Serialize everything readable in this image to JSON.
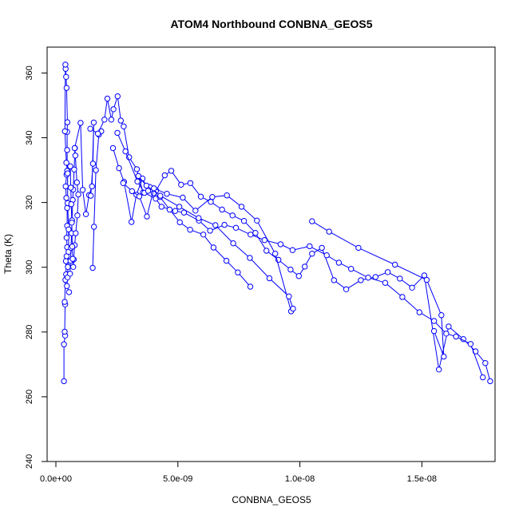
{
  "chart_data": {
    "type": "line",
    "title": "ATOM4 Northbound CONBNA_GEOS5",
    "xlabel": "CONBNA_GEOS5",
    "ylabel": "Theta (K)",
    "xlim": [
      -3.6e-10,
      1.8e-08
    ],
    "ylim": [
      240,
      368
    ],
    "x_ticks": [
      {
        "value": 0,
        "label": "0.0e+00"
      },
      {
        "value": 5e-09,
        "label": "5.0e-09"
      },
      {
        "value": 1e-08,
        "label": "1.0e-08"
      },
      {
        "value": 1.5e-08,
        "label": "1.5e-08"
      }
    ],
    "y_ticks": [
      {
        "value": 240,
        "label": "240"
      },
      {
        "value": 260,
        "label": "260"
      },
      {
        "value": 280,
        "label": "280"
      },
      {
        "value": 300,
        "label": "300"
      },
      {
        "value": 320,
        "label": "320"
      },
      {
        "value": 340,
        "label": "340"
      },
      {
        "value": 360,
        "label": "360"
      }
    ],
    "grid": false,
    "legend": "none",
    "color": "#0000ff",
    "series": [
      {
        "x": [
          3.3e-10,
          3.3e-10,
          3.8e-10,
          3.6e-10,
          3.8e-10,
          3.6e-10,
          3.9e-10,
          4.2e-10,
          4.1e-10,
          4.4e-10,
          4.6e-10,
          4.4e-10,
          4.6e-10,
          4.6e-10,
          4.3e-10,
          4e-10,
          4.4e-10,
          4.6e-10,
          4.6e-10,
          4.6e-10,
          4.7e-10,
          4.4e-10,
          4.2e-10,
          4e-10,
          3.9e-10,
          3.7e-10,
          4.3e-10,
          4.8e-10,
          4.8e-10,
          5.2e-10,
          5.2e-10,
          4.9e-10,
          4.8e-10,
          4.5e-10,
          5.4e-10
        ],
        "y": [
          264.8,
          276.2,
          278.9,
          280.1,
          288.5,
          289.3,
          296.1,
          297.8,
          301.9,
          303.4,
          306.2,
          309.1,
          312.8,
          318.3,
          321.4,
          325.0,
          328.6,
          329.8,
          336.2,
          341.8,
          344.8,
          355.4,
          358.8,
          361.3,
          362.6,
          342.0,
          332.3,
          329.0,
          319.8,
          311.7,
          304.8,
          300.1,
          296.9,
          294.2,
          292.3
        ]
      },
      {
        "x": [
          5.8e-10,
          6e-10,
          6.2e-10,
          6.4e-10,
          6.6e-10,
          6.9e-10,
          7.1e-10,
          7.5e-10,
          7.8e-10,
          8e-10,
          8.6e-10,
          9.2e-10,
          8.8e-10,
          8.1e-10,
          7.7e-10,
          7.3e-10,
          7.1e-10,
          6.9e-10,
          6.7e-10,
          6.5e-10,
          6.3e-10,
          6.1e-10,
          5.9e-10
        ],
        "y": [
          298.0,
          302.0,
          306.0,
          310.5,
          314.5,
          320.8,
          324.0,
          330.2,
          336.8,
          334.5,
          326.2,
          322.5,
          316.0,
          310.5,
          306.8,
          302.4,
          300.1,
          302.6,
          306.4,
          313.8,
          319.5,
          324.6,
          331.2
        ]
      },
      {
        "x": [
          7.7e-10,
          1.01e-09,
          1.1e-09,
          1.23e-09,
          1.36e-09,
          1.48e-09,
          1.55e-09,
          1.52e-09,
          1.43e-09
        ],
        "y": [
          336.8,
          344.6,
          323.9,
          316.4,
          322.3,
          325.0,
          344.7,
          332.0,
          322.1
        ]
      },
      {
        "x": [
          1.51e-09,
          1.56e-09,
          1.64e-09,
          1.76e-09,
          1.86e-09
        ],
        "y": [
          299.8,
          312.5,
          330.0,
          341.0,
          342.0
        ]
      },
      {
        "x": [
          1.41e-09,
          1.72e-09,
          1.99e-09,
          2.11e-09,
          2.27e-09,
          2.36e-09,
          2.53e-09,
          2.66e-09,
          2.78e-09,
          3e-09,
          3.32e-09,
          3.57e-09,
          3.85e-09,
          4.11e-09,
          4.46e-09,
          4.73e-09,
          5.13e-09,
          5.51e-09,
          5.94e-09,
          6.35e-09,
          6.81e-09,
          7.24e-09,
          7.71e-09,
          8.18e-09,
          8.63e-09,
          9.12e-09,
          9.62e-09,
          9.96e-09,
          1.02e-08,
          1.05e-08,
          1.09e-08,
          1.14e-08,
          1.19e-08,
          1.25e-08,
          1.31e-08,
          1.36e-08,
          1.41e-08,
          1.46e-08,
          1.51e-08,
          1.57e-08,
          1.61e-08,
          1.67e-08,
          1.72e-08,
          1.76e-08,
          1.78e-08
        ],
        "y": [
          342.8,
          341.3,
          345.6,
          352.1,
          345.6,
          348.8,
          352.8,
          345.3,
          343.5,
          334.0,
          330.3,
          323.1,
          324.8,
          323.7,
          328.4,
          329.8,
          325.5,
          326.0,
          321.8,
          320.2,
          317.8,
          316.0,
          314.3,
          310.6,
          305.1,
          302.3,
          299.3,
          297.3,
          300.2,
          304.2,
          306.0,
          296.0,
          293.2,
          296.0,
          297.0,
          298.5,
          296.5,
          293.7,
          297.5,
          268.4,
          281.7,
          277.8,
          274.0,
          270.4,
          264.8
        ]
      },
      {
        "x": [
          2.52e-09,
          2.85e-09,
          3.34e-09,
          3.63e-09,
          4.09e-09,
          4.33e-09,
          4.89e-09,
          5.25e-09,
          5.86e-09,
          6.32e-09,
          6.91e-09,
          7.38e-09,
          7.98e-09,
          8.55e-09,
          9.21e-09,
          9.7e-09,
          1.04e-08,
          1.11e-08,
          1.16e-08,
          1.21e-08,
          1.28e-08,
          1.35e-08,
          1.42e-08,
          1.49e-08,
          1.55e-08,
          1.6e-08,
          1.64e-08,
          1.7e-08,
          1.75e-08
        ],
        "y": [
          341.5,
          335.8,
          326.5,
          323.0,
          321.2,
          318.7,
          317.4,
          316.9,
          314.4,
          311.3,
          313.1,
          312.2,
          310.1,
          308.4,
          307.1,
          305.3,
          306.5,
          303.7,
          301.4,
          299.5,
          296.8,
          295.2,
          290.8,
          286.1,
          283.4,
          279.5,
          278.6,
          276.3,
          266.0
        ]
      },
      {
        "x": [
          2.34e-09,
          2.59e-09,
          2.79e-09,
          3.1e-09,
          3.3e-09,
          3.55e-09,
          3.78e-09,
          4.01e-09,
          4.27e-09,
          4.66e-09,
          5.08e-09,
          5.5e-09,
          6.04e-09,
          6.46e-09,
          6.99e-09,
          7.46e-09,
          7.97e-09
        ],
        "y": [
          336.8,
          330.6,
          326.4,
          314.0,
          322.4,
          327.4,
          323.6,
          322.9,
          321.7,
          317.8,
          313.9,
          311.6,
          310.1,
          306.1,
          302.0,
          298.4,
          294.0
        ]
      },
      {
        "x": [
          2.76e-09,
          3.12e-09,
          3.42e-09,
          3.73e-09,
          4.02e-09,
          4.55e-09,
          5.2e-09,
          5.72e-09,
          6.41e-09,
          7.01e-09,
          7.61e-09,
          8.24e-09,
          8.99e-09,
          9.64e-09,
          9.72e-09,
          9.55e-09,
          8.75e-09,
          7.95e-09,
          7.27e-09,
          6.54e-09,
          5.85e-09,
          5.06e-09,
          4.28e-09,
          3.71e-09,
          3.38e-09
        ],
        "y": [
          326.0,
          323.5,
          321.9,
          315.7,
          324.4,
          322.7,
          321.5,
          317.5,
          321.7,
          322.2,
          318.7,
          314.4,
          304.2,
          286.4,
          287.2,
          291.0,
          296.6,
          302.9,
          307.4,
          313.0,
          315.2,
          318.7,
          322.1,
          325.2,
          328.2
        ]
      },
      {
        "x": [
          1.05e-08,
          1.12e-08,
          1.24e-08,
          1.39e-08,
          1.52e-08,
          1.58e-08,
          1.59e-08,
          1.55e-08
        ],
        "y": [
          314.2,
          311.0,
          306.0,
          300.8,
          296.1,
          285.2,
          272.4,
          280.3
        ]
      }
    ]
  }
}
